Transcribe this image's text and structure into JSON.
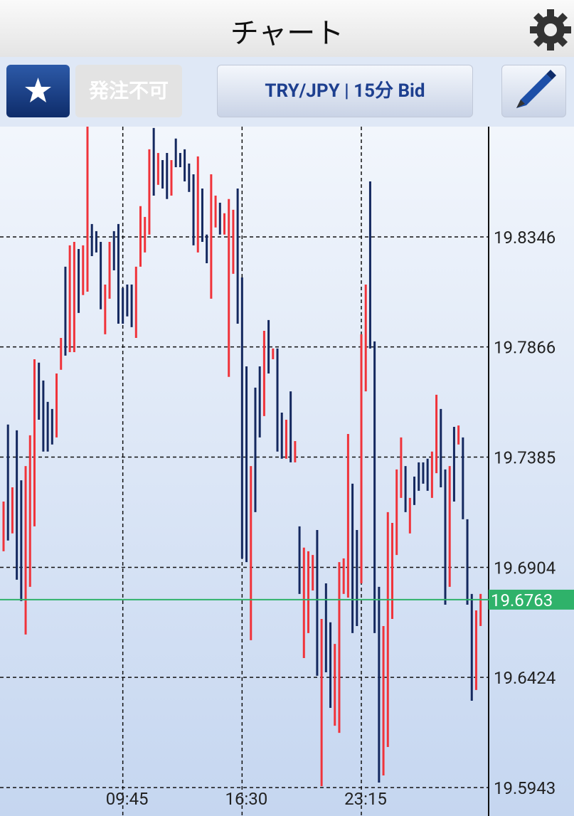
{
  "header": {
    "title": "チャート"
  },
  "toolbar": {
    "order_button": "発注不可",
    "symbol_button": "TRY/JPY | 15分 Bid"
  },
  "chart_data": {
    "type": "hilo",
    "categories": [
      null,
      null,
      null,
      null,
      null,
      null,
      null,
      null,
      null,
      null,
      null,
      null,
      null,
      null,
      null,
      null,
      null,
      null,
      null,
      null,
      null,
      null,
      null,
      null,
      null,
      null,
      null,
      "09:45",
      null,
      null,
      null,
      null,
      null,
      null,
      null,
      null,
      null,
      null,
      null,
      null,
      null,
      null,
      null,
      null,
      null,
      null,
      null,
      null,
      null,
      null,
      null,
      null,
      null,
      null,
      "16:30",
      null,
      null,
      null,
      null,
      null,
      null,
      null,
      null,
      null,
      null,
      null,
      null,
      null,
      null,
      null,
      null,
      null,
      null,
      null,
      null,
      null,
      null,
      null,
      null,
      null,
      null,
      "23:15",
      null,
      null,
      null,
      null,
      null,
      null,
      null,
      null,
      null,
      null,
      null,
      null,
      null,
      null,
      null,
      null,
      null,
      null,
      null,
      null,
      null,
      null,
      null,
      null,
      null,
      null,
      null
    ],
    "high": [
      19.7191,
      19.7527,
      19.7253,
      19.7502,
      19.7284,
      19.7346,
      19.748,
      19.7812,
      19.7797,
      19.7719,
      19.7626,
      19.7595,
      19.775,
      19.7905,
      19.8216,
      19.8309,
      19.8324,
      19.8293,
      19.8309,
      19.8827,
      19.8402,
      19.8371,
      19.8324,
      19.8138,
      19.8324,
      19.8371,
      19.8402,
      19.8123,
      19.8138,
      19.8138,
      19.8216,
      19.848,
      19.8433,
      19.8728,
      19.8821,
      19.8712,
      19.8681,
      19.8712,
      19.8681,
      19.8775,
      19.8712,
      19.8728,
      19.8666,
      19.8619,
      19.8697,
      19.8557,
      19.8356,
      19.8619,
      19.8526,
      19.8495,
      19.8449,
      19.8511,
      19.8464,
      19.8557,
      19.8169,
      19.7781,
      19.7346,
      19.7688,
      19.7781,
      19.7936,
      19.7983,
      19.7859,
      19.7859,
      19.7579,
      19.7548,
      19.7672,
      19.7455,
      19.7083,
      19.699,
      19.6974,
      19.6958,
      19.7067,
      19.6679,
      19.6834,
      19.6664,
      19.657,
      19.6927,
      19.6943,
      19.7486,
      19.7269,
      19.7067,
      19.7921,
      19.8138,
      19.8588,
      19.789,
      19.6819,
      19.6648,
      19.7145,
      19.7098,
      19.7331,
      19.7471,
      19.7346,
      19.7207,
      19.73,
      19.7362,
      19.7362,
      19.7378,
      19.7409,
      19.7657,
      19.7595,
      19.7331,
      19.7346,
      19.7517,
      19.7523,
      19.7471,
      19.7114,
      19.6788,
      19.6716,
      19.6788
    ],
    "low": [
      19.6974,
      19.7021,
      19.7052,
      19.685,
      19.6757,
      19.6611,
      19.6819,
      19.7083,
      19.7548,
      19.7409,
      19.7409,
      19.744,
      19.7471,
      19.7766,
      19.7828,
      19.7843,
      19.7843,
      19.8014,
      19.8092,
      19.8107,
      19.8262,
      19.8278,
      19.803,
      19.7921,
      19.8076,
      19.82,
      19.7967,
      19.7967,
      19.7999,
      19.7952,
      19.7905,
      19.8216,
      19.8278,
      19.8356,
      19.8526,
      19.8573,
      19.8557,
      19.8511,
      19.8526,
      19.865,
      19.865,
      19.8588,
      19.8542,
      19.8309,
      19.8278,
      19.8324,
      19.8231,
      19.8076,
      19.8387,
      19.8356,
      19.8356,
      19.7735,
      19.8185,
      19.7967,
      19.6943,
      19.6927,
      19.6586,
      19.7145,
      19.7471,
      19.7564,
      19.775,
      19.7812,
      19.7409,
      19.7378,
      19.7378,
      19.7362,
      19.7362,
      19.6788,
      19.6508,
      19.6617,
      19.6803,
      19.6431,
      19.5949,
      19.6446,
      19.6291,
      19.6213,
      19.6182,
      19.6788,
      19.6772,
      19.6617,
      19.6648,
      19.6834,
      19.7672,
      19.7859,
      19.6617,
      19.5965,
      19.5996,
      19.612,
      19.6679,
      19.6958,
      19.7207,
      19.7145,
      19.7052,
      19.7176,
      19.7238,
      19.7269,
      19.7238,
      19.7207,
      19.7315,
      19.7253,
      19.6741,
      19.6819,
      19.7191,
      19.744,
      19.7114,
      19.6741,
      19.6322,
      19.6369,
      19.6648
    ],
    "rising": [
      true,
      false,
      true,
      false,
      false,
      true,
      true,
      true,
      false,
      false,
      false,
      false,
      true,
      true,
      false,
      true,
      true,
      false,
      true,
      true,
      false,
      false,
      false,
      true,
      true,
      false,
      false,
      false,
      false,
      false,
      true,
      true,
      true,
      true,
      false,
      true,
      false,
      false,
      true,
      false,
      false,
      false,
      false,
      false,
      true,
      false,
      false,
      true,
      true,
      false,
      true,
      true,
      true,
      false,
      false,
      false,
      true,
      false,
      false,
      true,
      false,
      true,
      false,
      false,
      true,
      false,
      true,
      false,
      true,
      true,
      true,
      false,
      true,
      false,
      false,
      true,
      true,
      true,
      true,
      false,
      false,
      true,
      true,
      false,
      false,
      false,
      true,
      true,
      true,
      true,
      true,
      false,
      true,
      false,
      false,
      false,
      false,
      true,
      true,
      false,
      false,
      true,
      false,
      true,
      false,
      false,
      false,
      true,
      true
    ],
    "up_color": "#f0333a",
    "down_color": "#14285f",
    "ylim": [
      19.5819,
      19.8827
    ],
    "yticks": [
      19.8346,
      19.7866,
      19.7385,
      19.6904,
      19.6424,
      19.5943
    ],
    "grid": true,
    "current_price": 19.6763,
    "current_color": "#2fb26a"
  }
}
